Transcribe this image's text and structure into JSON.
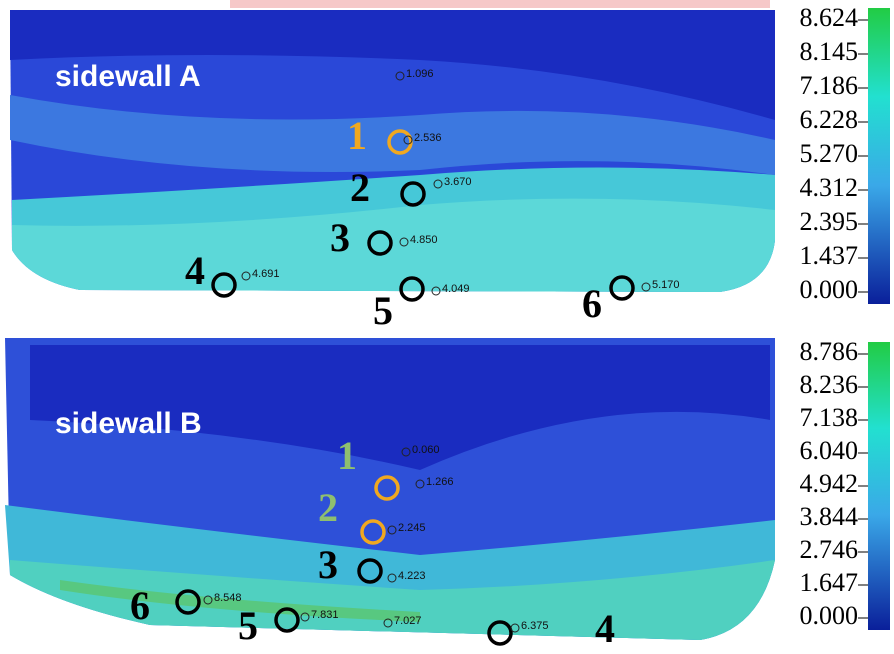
{
  "panels": [
    {
      "label": "sidewall A",
      "legend": [
        "8.624",
        "8.145",
        "7.186",
        "6.228",
        "5.270",
        "4.312",
        "2.395",
        "1.437",
        "0.000"
      ],
      "points": [
        {
          "value": "1.096"
        },
        {
          "label": "1",
          "value": "2.536"
        },
        {
          "label": "2",
          "value": "3.670"
        },
        {
          "label": "3",
          "value": "4.850"
        },
        {
          "label": "4",
          "value": "4.691"
        },
        {
          "label": "5",
          "value": "4.049"
        },
        {
          "label": "6",
          "value": "5.170"
        }
      ]
    },
    {
      "label": "sidewall B",
      "legend": [
        "8.786",
        "8.236",
        "7.138",
        "6.040",
        "4.942",
        "3.844",
        "2.746",
        "1.647",
        "0.000"
      ],
      "points": [
        {
          "value": "0.060"
        },
        {
          "label": "1",
          "value": "1.266"
        },
        {
          "label": "2",
          "value": "2.245"
        },
        {
          "label": "3",
          "value": "4.223"
        },
        {
          "label": "6",
          "value": "8.548"
        },
        {
          "label": "5",
          "value": "7.831"
        },
        {
          "value": "7.027"
        },
        {
          "label": "4",
          "value": "6.375"
        }
      ]
    }
  ]
}
